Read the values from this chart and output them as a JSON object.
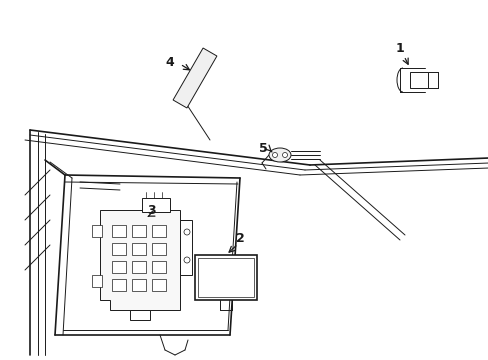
{
  "background_color": "#ffffff",
  "line_color": "#1a1a1a",
  "figsize": [
    4.89,
    3.6
  ],
  "dpi": 100,
  "lw_main": 1.2,
  "lw_thin": 0.7,
  "lw_detail": 0.5
}
